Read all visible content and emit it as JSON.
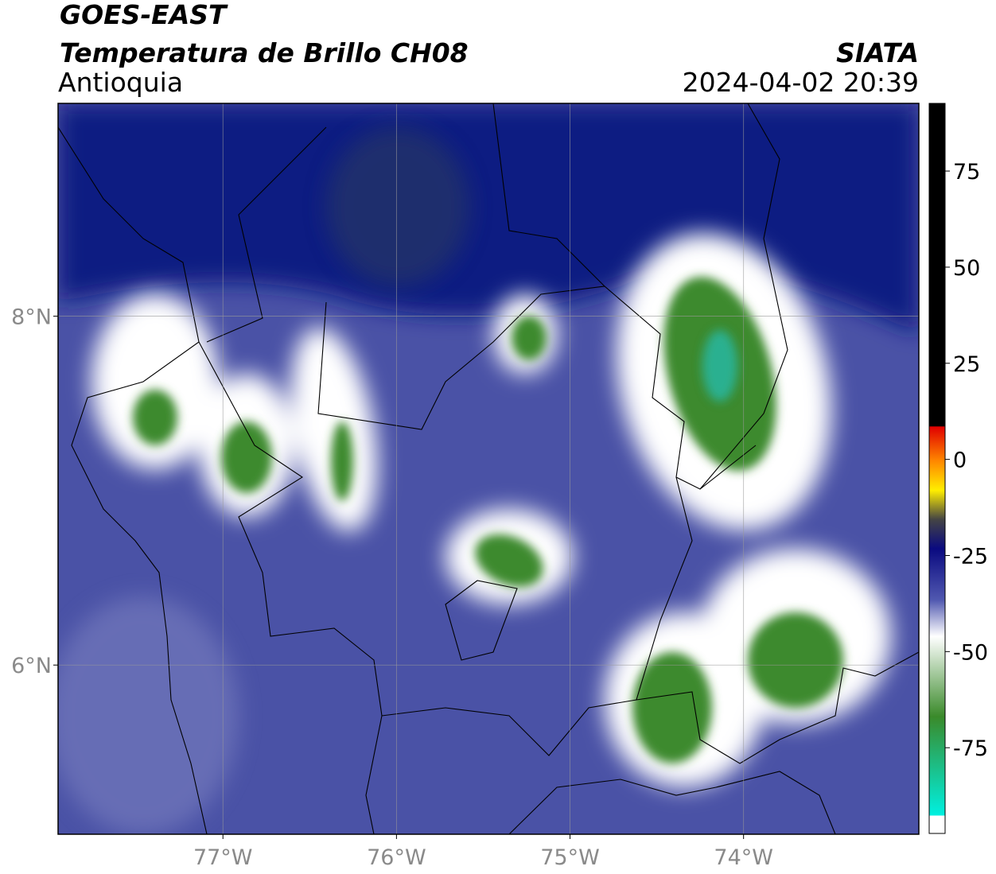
{
  "header": {
    "title": "GOES-EAST",
    "subtitle": "Temperatura de Brillo CH08",
    "region": "Antioquia",
    "source": "SIATA",
    "datetime": "2024-04-02 20:39"
  },
  "map": {
    "xlim": [
      -77.95,
      -72.99
    ],
    "ylim": [
      5.03,
      9.22
    ],
    "xticks": [
      {
        "value": -77,
        "label": "77°W"
      },
      {
        "value": -76,
        "label": "76°W"
      },
      {
        "value": -75,
        "label": "75°W"
      },
      {
        "value": -74,
        "label": "74°W"
      }
    ],
    "yticks": [
      {
        "value": 8,
        "label": "8°N"
      },
      {
        "value": 6,
        "label": "6°N"
      }
    ],
    "grid": true
  },
  "colorbar": {
    "lim": [
      -97.3,
      92.6
    ],
    "ticks": [
      75,
      50,
      25,
      0,
      -25,
      -50,
      -75
    ]
  }
}
